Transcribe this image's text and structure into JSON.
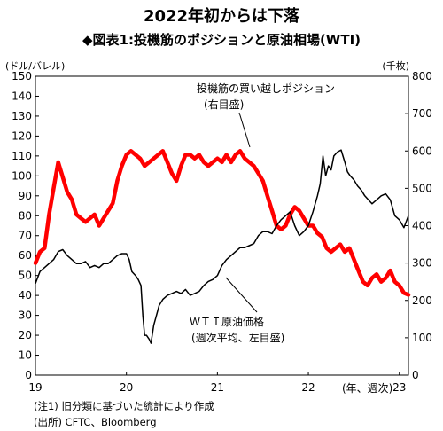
{
  "chart_data": {
    "type": "line",
    "title": "2022年初からは下落",
    "subtitle": "◆図表1:投機筋のポジションと原油相場(WTI)",
    "y_left": {
      "unit": "(ドル/バレル)",
      "ticks": [
        0,
        10,
        20,
        30,
        40,
        50,
        60,
        70,
        80,
        90,
        100,
        110,
        120,
        130,
        140,
        150
      ],
      "ylim": [
        0,
        150
      ]
    },
    "y_right": {
      "unit": "(千枚)",
      "ticks": [
        0,
        100,
        200,
        300,
        400,
        500,
        600,
        700,
        800
      ],
      "ylim": [
        0,
        800
      ]
    },
    "x_axis": {
      "ticks": [
        "19",
        "20",
        "21",
        "22",
        "23"
      ],
      "unit_label": "(年、週次)",
      "xlim": [
        2019.0,
        2023.1
      ]
    },
    "series": [
      {
        "name": "WTI原油価格",
        "axis": "left",
        "color": "#000000",
        "x": [
          2019.0,
          2019.05,
          2019.1,
          2019.15,
          2019.2,
          2019.25,
          2019.3,
          2019.35,
          2019.4,
          2019.45,
          2019.5,
          2019.55,
          2019.6,
          2019.65,
          2019.7,
          2019.75,
          2019.8,
          2019.85,
          2019.9,
          2019.95,
          2020.0,
          2020.03,
          2020.06,
          2020.1,
          2020.13,
          2020.16,
          2020.18,
          2020.2,
          2020.22,
          2020.25,
          2020.27,
          2020.3,
          2020.33,
          2020.36,
          2020.4,
          2020.45,
          2020.5,
          2020.55,
          2020.6,
          2020.65,
          2020.7,
          2020.75,
          2020.8,
          2020.85,
          2020.9,
          2020.95,
          2021.0,
          2021.05,
          2021.1,
          2021.15,
          2021.2,
          2021.25,
          2021.3,
          2021.35,
          2021.4,
          2021.45,
          2021.5,
          2021.55,
          2021.6,
          2021.65,
          2021.7,
          2021.75,
          2021.8,
          2021.85,
          2021.9,
          2021.95,
          2022.0,
          2022.05,
          2022.1,
          2022.13,
          2022.16,
          2022.19,
          2022.22,
          2022.25,
          2022.28,
          2022.32,
          2022.36,
          2022.4,
          2022.43,
          2022.46,
          2022.5,
          2022.54,
          2022.58,
          2022.62,
          2022.66,
          2022.7,
          2022.75,
          2022.8,
          2022.85,
          2022.9,
          2022.95,
          2023.0,
          2023.05,
          2023.1
        ],
        "values": [
          46,
          52,
          54,
          56,
          58,
          62,
          63,
          60,
          58,
          56,
          56,
          57,
          54,
          55,
          54,
          56,
          56,
          58,
          60,
          61,
          61,
          58,
          52,
          50,
          48,
          45,
          30,
          20,
          20,
          18,
          16,
          25,
          30,
          35,
          38,
          40,
          41,
          42,
          41,
          43,
          40,
          41,
          42,
          45,
          47,
          48,
          50,
          55,
          58,
          60,
          62,
          64,
          64,
          65,
          66,
          70,
          72,
          72,
          71,
          75,
          78,
          80,
          82,
          75,
          70,
          72,
          75,
          82,
          90,
          96,
          110,
          100,
          105,
          103,
          110,
          112,
          113,
          107,
          102,
          100,
          98,
          95,
          93,
          90,
          88,
          86,
          88,
          90,
          91,
          88,
          80,
          78,
          74,
          80
        ]
      },
      {
        "name": "投機筋の買い越しポジション",
        "axis": "right",
        "color": "#ff0000",
        "x": [
          2019.0,
          2019.05,
          2019.1,
          2019.15,
          2019.2,
          2019.25,
          2019.3,
          2019.35,
          2019.4,
          2019.45,
          2019.5,
          2019.55,
          2019.6,
          2019.65,
          2019.7,
          2019.75,
          2019.8,
          2019.85,
          2019.9,
          2019.95,
          2020.0,
          2020.05,
          2020.1,
          2020.15,
          2020.2,
          2020.25,
          2020.3,
          2020.35,
          2020.4,
          2020.45,
          2020.5,
          2020.55,
          2020.6,
          2020.65,
          2020.7,
          2020.75,
          2020.8,
          2020.85,
          2020.9,
          2020.95,
          2021.0,
          2021.05,
          2021.1,
          2021.15,
          2021.2,
          2021.25,
          2021.3,
          2021.35,
          2021.4,
          2021.45,
          2021.5,
          2021.55,
          2021.6,
          2021.65,
          2021.7,
          2021.75,
          2021.8,
          2021.85,
          2021.9,
          2021.95,
          2022.0,
          2022.05,
          2022.1,
          2022.15,
          2022.2,
          2022.25,
          2022.3,
          2022.35,
          2022.4,
          2022.45,
          2022.5,
          2022.55,
          2022.6,
          2022.65,
          2022.7,
          2022.75,
          2022.8,
          2022.85,
          2022.9,
          2022.95,
          2023.0,
          2023.05,
          2023.1
        ],
        "values": [
          300,
          330,
          340,
          430,
          500,
          570,
          530,
          490,
          470,
          430,
          420,
          410,
          420,
          430,
          400,
          420,
          440,
          460,
          520,
          560,
          590,
          600,
          590,
          580,
          560,
          570,
          580,
          590,
          600,
          570,
          540,
          520,
          560,
          590,
          590,
          580,
          590,
          570,
          560,
          570,
          580,
          570,
          590,
          570,
          590,
          600,
          580,
          570,
          560,
          540,
          520,
          480,
          440,
          400,
          390,
          400,
          430,
          450,
          440,
          420,
          400,
          400,
          380,
          370,
          340,
          330,
          340,
          350,
          330,
          340,
          310,
          280,
          250,
          240,
          260,
          270,
          250,
          260,
          280,
          250,
          240,
          220,
          215
        ]
      }
    ],
    "annotations": {
      "position_label": [
        "投機筋の買い越しポジション",
        "(右目盛)"
      ],
      "wti_label": [
        "ＷＴＩ原油価格",
        "(週次平均、左目盛)"
      ]
    },
    "notes": [
      "(注1) 旧分類に基づいた統計により作成",
      "(出所) CFTC、Bloomberg"
    ],
    "grid": false,
    "legend": "none"
  }
}
